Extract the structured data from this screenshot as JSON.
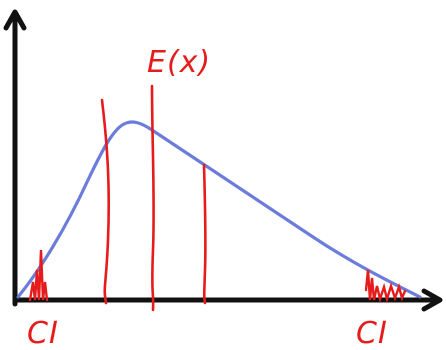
{
  "colors": {
    "axis": "#111111",
    "curve": "#5b6ed6",
    "ink": "#e61b1b",
    "background": "#ffffff"
  },
  "labels": {
    "expected_value": "E(x)",
    "ci_left": "CI",
    "ci_right": "CI"
  }
}
